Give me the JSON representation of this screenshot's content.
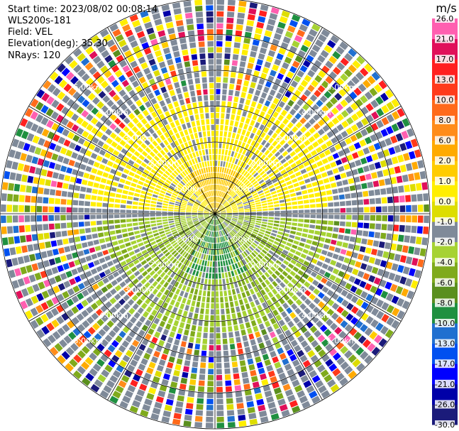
{
  "header": {
    "start_time": "Start time: 2023/08/02 00:08:14",
    "site": "WLS200s-181",
    "field": "Field: VEL",
    "elevation": "Elevation(deg): 35.30",
    "nrays": "NRays: 120"
  },
  "chart_data": {
    "type": "polar-ppi",
    "title": "Start time: 2023/08/02 00:08:14 WLS200s-181 Field: VEL",
    "field": "VEL",
    "units": "m/s",
    "elevation_deg": 35.3,
    "n_rays": 120,
    "range_max_km": 6.0,
    "range_rings": [
      {
        "km": 1,
        "label": "1.00km"
      },
      {
        "km": 2,
        "label": "2.00km"
      },
      {
        "km": 3,
        "label": "3.00km"
      },
      {
        "km": 4,
        "label": "4.00km"
      },
      {
        "km": 5,
        "label": "5.00km"
      }
    ],
    "azimuth_lines_deg": [
      0,
      30,
      60,
      90,
      120,
      150,
      180,
      210,
      240,
      270,
      300,
      330
    ],
    "colorbar": {
      "unit": "m/s",
      "colors": [
        "#1b1b7a",
        "#0000a8",
        "#0000ff",
        "#0050f0",
        "#2070d0",
        "#1f9040",
        "#5a8f1e",
        "#7faa1c",
        "#a6d233",
        "#7f8a99",
        "#dddd00",
        "#ffee00",
        "#ffcc00",
        "#ffaa00",
        "#ff8c1a",
        "#ff6a1a",
        "#ff3a1a",
        "#ff2020",
        "#e0105a",
        "#ff5fb0"
      ],
      "tick_labels": [
        "-30.0",
        "-26.0",
        "-21.0",
        "-17.0",
        "-13.0",
        "-10.0",
        "-8.0",
        "-6.0",
        "-4.0",
        "-2.0",
        "-1.0",
        "0.0",
        "1.0",
        "2.0",
        "6.0",
        "8.0",
        "10.0",
        "13.0",
        "17.0",
        "21.0",
        "26.0"
      ]
    },
    "pattern": {
      "inner_toward_dir": "north",
      "toward_color_value": 2.0,
      "away_color_value": -4.0,
      "noise_beyond_km": 4.2
    }
  }
}
